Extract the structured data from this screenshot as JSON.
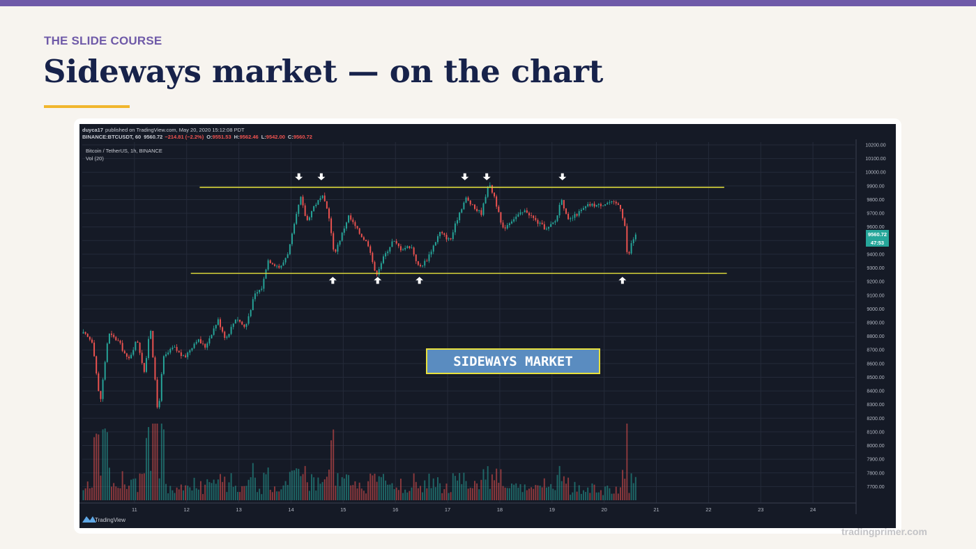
{
  "slide": {
    "eyebrow": "THE SLIDE COURSE",
    "title": "Sideways market — on the chart",
    "watermark": "tradingprimer.com",
    "accent_color": "#6f5aa8",
    "rule_color": "#f1b62d"
  },
  "chart_data": {
    "type": "candlestick",
    "header": {
      "publisher_name": "duyca17",
      "publisher_text": "published on TradingView.com, May 20, 2020 15:12:08 PDT",
      "symbol_line": "BINANCE:BTCUSDT, 60",
      "last_price": "9560.72",
      "change_text": "−214.81 (−2.2%)",
      "o_label": "O:",
      "o_value": "9551.53",
      "h_label": "H:",
      "h_value": "9562.46",
      "l_label": "L:",
      "l_value": "9542.00",
      "c_label": "C:",
      "c_value": "9560.72"
    },
    "pair_label": "Bitcoin / TetherUS, 1h, BINANCE",
    "volume_label": "Vol (20)",
    "price_axis": {
      "ylim": [
        7600,
        10200
      ],
      "ticks": [
        10200,
        10100,
        10000,
        9900,
        9800,
        9700,
        9600,
        9500,
        9400,
        9300,
        9200,
        9100,
        9000,
        8900,
        8800,
        8700,
        8600,
        8500,
        8400,
        8300,
        8200,
        8100,
        8000,
        7900,
        7800,
        7700
      ],
      "tick_labels": [
        "10200.00",
        "10100.00",
        "10000.00",
        "9900.00",
        "9800.00",
        "9700.00",
        "9600.00",
        "9500.00",
        "9400.00",
        "9300.00",
        "9200.00",
        "9100.00",
        "9000.00",
        "8900.00",
        "8800.00",
        "8700.00",
        "8600.00",
        "8500.00",
        "8400.00",
        "8300.00",
        "8200.00",
        "8100.00",
        "8000.00",
        "7900.00",
        "7800.00",
        "7700.00"
      ],
      "price_badge": "9560.72",
      "countdown_badge": "47:53"
    },
    "time_axis": {
      "xlim": [
        10.0,
        24.8
      ],
      "ticks": [
        11,
        12,
        13,
        14,
        15,
        16,
        17,
        18,
        19,
        20,
        21,
        22,
        23,
        24
      ],
      "tick_labels": [
        "11",
        "12",
        "13",
        "14",
        "15",
        "16",
        "17",
        "18",
        "19",
        "20",
        "21",
        "22",
        "23",
        "24"
      ]
    },
    "resistance": {
      "price": 9890,
      "from": 12.25,
      "to": 22.3
    },
    "support": {
      "price": 9260,
      "from": 12.08,
      "to": 22.35
    },
    "resistance_touches": [
      14.15,
      14.58,
      17.33,
      17.75,
      19.2
    ],
    "support_touches": [
      14.8,
      15.66,
      16.46,
      20.35
    ],
    "price_path": [
      [
        10.02,
        8820
      ],
      [
        10.2,
        8760
      ],
      [
        10.34,
        8300
      ],
      [
        10.5,
        8820
      ],
      [
        10.7,
        8760
      ],
      [
        10.88,
        8620
      ],
      [
        11.05,
        8780
      ],
      [
        11.2,
        8520
      ],
      [
        11.3,
        8900
      ],
      [
        11.45,
        8220
      ],
      [
        11.55,
        8640
      ],
      [
        11.75,
        8720
      ],
      [
        11.95,
        8640
      ],
      [
        12.2,
        8780
      ],
      [
        12.35,
        8720
      ],
      [
        12.6,
        8920
      ],
      [
        12.75,
        8780
      ],
      [
        12.95,
        8940
      ],
      [
        13.12,
        8860
      ],
      [
        13.3,
        9100
      ],
      [
        13.45,
        9160
      ],
      [
        13.55,
        9360
      ],
      [
        13.8,
        9300
      ],
      [
        13.95,
        9420
      ],
      [
        14.08,
        9640
      ],
      [
        14.18,
        9820
      ],
      [
        14.3,
        9640
      ],
      [
        14.45,
        9760
      ],
      [
        14.6,
        9820
      ],
      [
        14.72,
        9700
      ],
      [
        14.82,
        9400
      ],
      [
        14.95,
        9520
      ],
      [
        15.1,
        9680
      ],
      [
        15.3,
        9560
      ],
      [
        15.5,
        9460
      ],
      [
        15.62,
        9240
      ],
      [
        15.75,
        9360
      ],
      [
        15.95,
        9500
      ],
      [
        16.1,
        9440
      ],
      [
        16.3,
        9460
      ],
      [
        16.45,
        9300
      ],
      [
        16.6,
        9360
      ],
      [
        16.85,
        9560
      ],
      [
        17.05,
        9500
      ],
      [
        17.22,
        9700
      ],
      [
        17.35,
        9810
      ],
      [
        17.5,
        9740
      ],
      [
        17.65,
        9700
      ],
      [
        17.78,
        9920
      ],
      [
        17.9,
        9820
      ],
      [
        18.05,
        9580
      ],
      [
        18.25,
        9660
      ],
      [
        18.5,
        9720
      ],
      [
        18.7,
        9640
      ],
      [
        18.9,
        9580
      ],
      [
        19.08,
        9650
      ],
      [
        19.18,
        9820
      ],
      [
        19.3,
        9640
      ],
      [
        19.5,
        9700
      ],
      [
        19.7,
        9760
      ],
      [
        19.9,
        9760
      ],
      [
        20.1,
        9780
      ],
      [
        20.3,
        9760
      ],
      [
        20.4,
        9600
      ],
      [
        20.45,
        9340
      ],
      [
        20.5,
        9460
      ],
      [
        20.62,
        9560
      ]
    ],
    "callout": "SIDEWAYS MARKET",
    "brand": "TradingView",
    "bull_color": "#26a69a",
    "bear_color": "#ef5350",
    "level_color": "#d9d53a"
  }
}
